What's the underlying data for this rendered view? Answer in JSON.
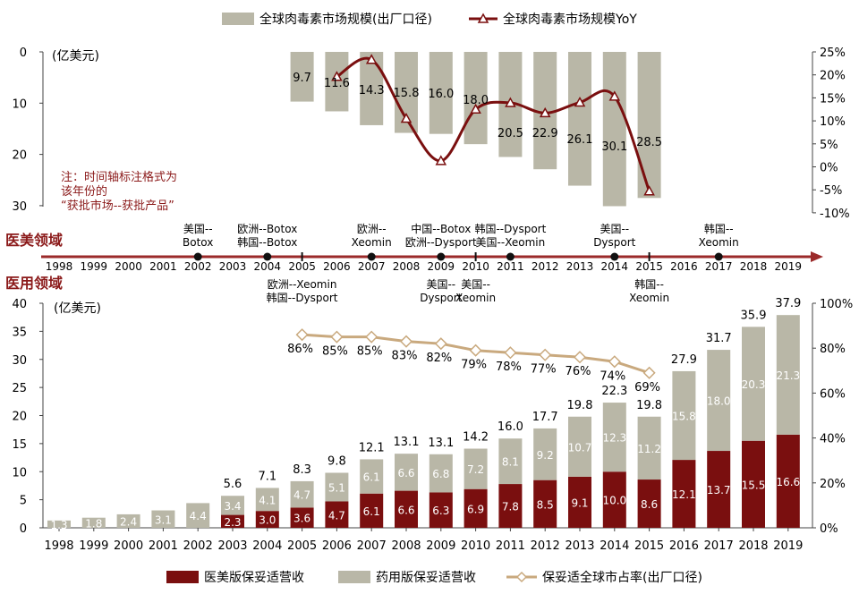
{
  "colors": {
    "grey_bar": "#b9b7a7",
    "dark_red": "#7a0f0f",
    "share_line": "#c9a97e",
    "arrow": "#9b2a2a",
    "note": "#8b1a1a"
  },
  "top_chart": {
    "legend_bar": "全球肉毒素市场规模(出厂口径)",
    "legend_line": "全球肉毒素市场规模YoY",
    "left_unit": "(亿美元)",
    "note_lines": [
      "注：时间轴标注格式为",
      "该年份的",
      "“获批市场--获批产品”"
    ]
  },
  "section_labels": {
    "aesthetic": "医美领域",
    "therapeutic": "医用领域"
  },
  "timeline": {
    "years": [
      "1998",
      "1999",
      "2000",
      "2001",
      "2002",
      "2003",
      "2004",
      "2005",
      "2006",
      "2007",
      "2008",
      "2009",
      "2010",
      "2011",
      "2012",
      "2013",
      "2014",
      "2015",
      "2016",
      "2017",
      "2018",
      "2019"
    ],
    "dot_years": [
      "2002",
      "2004",
      "2007",
      "2009",
      "2011",
      "2014",
      "2017"
    ],
    "tick_years": [
      "2005",
      "2010",
      "2015"
    ],
    "above": [
      {
        "year": "2002",
        "lines": [
          "美国--",
          "Botox"
        ]
      },
      {
        "year": "2004",
        "lines": [
          "欧洲--Botox",
          "韩国--Botox"
        ]
      },
      {
        "year": "2007",
        "lines": [
          "欧洲--",
          "Xeomin"
        ]
      },
      {
        "year": "2009",
        "lines": [
          "中国--Botox",
          "欧洲--Dysport"
        ]
      },
      {
        "year": "2011",
        "lines": [
          "韩国--Dysport",
          "美国--Xeomin"
        ]
      },
      {
        "year": "2014",
        "lines": [
          "美国--",
          "Dysport"
        ]
      },
      {
        "year": "2017",
        "lines": [
          "韩国--",
          "Xeomin"
        ]
      }
    ],
    "below": [
      {
        "year": "2005",
        "lines": [
          "欧洲--Xeomin",
          "韩国--Dysport"
        ]
      },
      {
        "year": "2009",
        "lines": [
          "美国--",
          "Dysport"
        ]
      },
      {
        "year": "2010",
        "lines": [
          "美国--",
          "Xeomin"
        ]
      },
      {
        "year": "2015",
        "lines": [
          "韩国--",
          "Xeomin"
        ]
      }
    ]
  },
  "bottom_chart": {
    "left_unit": "(亿美元)",
    "legend_aesthetic": "医美版保妥适营收",
    "legend_therapeutic": "药用版保妥适营收",
    "legend_share": "保妥适全球市占率(出厂口径)"
  },
  "chart_data": [
    {
      "type": "bar",
      "name": "top",
      "categories": [
        "2005",
        "2006",
        "2007",
        "2008",
        "2009",
        "2010",
        "2011",
        "2012",
        "2013",
        "2014",
        "2015"
      ],
      "series": [
        {
          "name": "全球肉毒素市场规模(出厂口径)",
          "values": [
            9.7,
            11.6,
            14.3,
            15.8,
            16.0,
            18.0,
            20.5,
            22.9,
            26.1,
            30.1,
            28.5
          ],
          "axis": "left"
        },
        {
          "name": "全球肉毒素市场规模YoY",
          "type": "line",
          "axis": "right",
          "values": [
            null,
            19.6,
            23.3,
            10.5,
            1.3,
            12.5,
            13.9,
            11.7,
            14.0,
            15.3,
            -5.3
          ]
        }
      ],
      "y_left": {
        "ylim": [
          0,
          30
        ],
        "inverted": true,
        "ticks": [
          "0",
          "10",
          "20",
          "30"
        ]
      },
      "y_right": {
        "ylim": [
          -10,
          25
        ],
        "ticks": [
          "25%",
          "20%",
          "15%",
          "10%",
          "5%",
          "0%",
          "-5%",
          "-10%"
        ]
      }
    },
    {
      "type": "bar",
      "name": "bottom",
      "stacked": true,
      "categories": [
        "1998",
        "1999",
        "2000",
        "2001",
        "2002",
        "2003",
        "2004",
        "2005",
        "2006",
        "2007",
        "2008",
        "2009",
        "2010",
        "2011",
        "2012",
        "2013",
        "2014",
        "2015",
        "2016",
        "2017",
        "2018",
        "2019"
      ],
      "series": [
        {
          "name": "医美版保妥适营收",
          "values": [
            null,
            null,
            null,
            null,
            null,
            2.3,
            3.0,
            3.6,
            4.7,
            6.1,
            6.6,
            6.3,
            6.9,
            7.8,
            8.5,
            9.1,
            10.0,
            8.6,
            12.1,
            13.7,
            15.5,
            16.6
          ]
        },
        {
          "name": "药用版保妥适营收",
          "values": [
            1.3,
            1.8,
            2.4,
            3.1,
            4.4,
            3.4,
            4.1,
            4.7,
            5.1,
            6.1,
            6.6,
            6.8,
            7.2,
            8.1,
            9.2,
            10.7,
            12.3,
            11.2,
            15.8,
            18.0,
            20.3,
            21.3
          ]
        },
        {
          "name": "保妥适全球市占率(出厂口径)",
          "type": "line",
          "axis": "right",
          "values": [
            null,
            null,
            null,
            null,
            null,
            null,
            null,
            86,
            85,
            85,
            83,
            82,
            79,
            78,
            77,
            76,
            74,
            69,
            null,
            null,
            null,
            null
          ]
        }
      ],
      "totals": [
        null,
        null,
        null,
        null,
        null,
        5.6,
        7.1,
        8.3,
        9.8,
        12.1,
        13.1,
        13.1,
        14.2,
        16.0,
        17.7,
        19.8,
        22.3,
        19.8,
        27.9,
        31.7,
        35.9,
        37.9
      ],
      "y_left": {
        "ylim": [
          0,
          40
        ],
        "ticks": [
          "0",
          "5",
          "10",
          "15",
          "20",
          "25",
          "30",
          "35",
          "40"
        ]
      },
      "y_right": {
        "ylim": [
          0,
          100
        ],
        "ticks": [
          "0%",
          "20%",
          "40%",
          "60%",
          "80%",
          "100%"
        ]
      },
      "share_labels": [
        "86%",
        "85%",
        "85%",
        "83%",
        "82%",
        "79%",
        "78%",
        "77%",
        "76%",
        "74%",
        "69%"
      ]
    }
  ]
}
